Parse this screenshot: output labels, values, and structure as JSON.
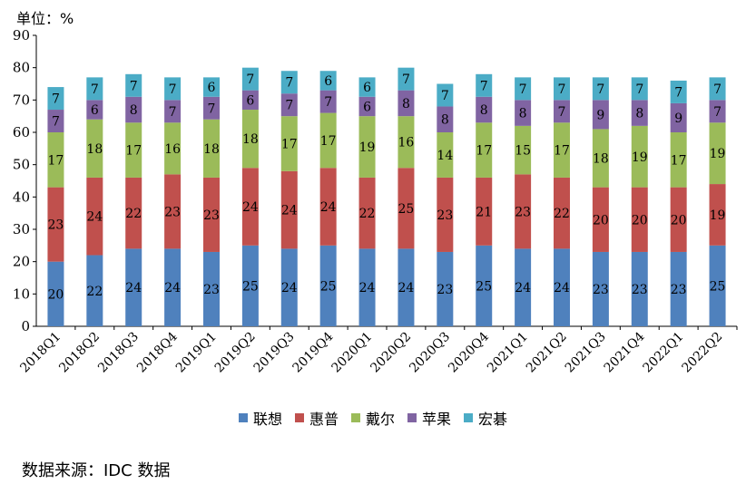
{
  "chart_data": {
    "type": "bar",
    "stacked": true,
    "unit_label": "单位：%",
    "source_note": "数据来源：IDC 数据",
    "categories": [
      "2018Q1",
      "2018Q2",
      "2018Q3",
      "2018Q4",
      "2019Q1",
      "2019Q2",
      "2019Q3",
      "2019Q4",
      "2020Q1",
      "2020Q2",
      "2020Q3",
      "2020Q4",
      "2021Q1",
      "2021Q2",
      "2021Q3",
      "2021Q4",
      "2022Q1",
      "2022Q2"
    ],
    "ylim": [
      0,
      90
    ],
    "yticks": [
      0,
      10,
      20,
      30,
      40,
      50,
      60,
      70,
      80,
      90
    ],
    "grid": false,
    "legend_position": "bottom",
    "series": [
      {
        "name": "联想",
        "color": "#4f81bd",
        "values": [
          20,
          22,
          24,
          24,
          23,
          25,
          24,
          25,
          24,
          24,
          23,
          25,
          24,
          24,
          23,
          23,
          23,
          25
        ]
      },
      {
        "name": "惠普",
        "color": "#c0504d",
        "values": [
          23,
          24,
          22,
          23,
          23,
          24,
          24,
          24,
          22,
          25,
          23,
          21,
          23,
          22,
          20,
          20,
          20,
          19
        ]
      },
      {
        "name": "戴尔",
        "color": "#9bbb59",
        "values": [
          17,
          18,
          17,
          16,
          18,
          18,
          17,
          17,
          19,
          16,
          14,
          17,
          15,
          17,
          18,
          19,
          17,
          19
        ]
      },
      {
        "name": "苹果",
        "color": "#8064a2",
        "values": [
          7,
          6,
          8,
          7,
          7,
          6,
          7,
          7,
          6,
          8,
          8,
          8,
          8,
          7,
          9,
          8,
          9,
          7
        ]
      },
      {
        "name": "宏碁",
        "color": "#4bacc6",
        "values": [
          7,
          7,
          7,
          7,
          6,
          7,
          7,
          6,
          6,
          7,
          7,
          7,
          7,
          7,
          7,
          7,
          7,
          7
        ]
      }
    ]
  }
}
